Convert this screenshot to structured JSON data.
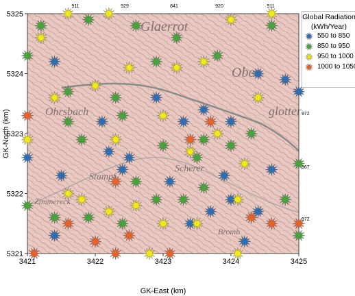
{
  "chart_data": {
    "type": "scatter",
    "title": "",
    "xlabel": "GK-East (km)",
    "ylabel": "GK-North (km)",
    "xlim": [
      3421,
      3425
    ],
    "ylim": [
      5321,
      5325
    ],
    "x_ticks": [
      "3421",
      "3422",
      "3423",
      "3424",
      "3425"
    ],
    "y_ticks": [
      "5321",
      "5322",
      "5323",
      "5324",
      "5325"
    ],
    "basemap": "topographic map",
    "basemap_labels": [
      "Glaerrot",
      "Ober",
      "Ohrsbach",
      "glotter",
      "Stampf",
      "Scherer",
      "Zimmereck",
      "Bromb"
    ],
    "top_labels": [
      "911",
      "929",
      "841",
      "920",
      "911"
    ],
    "right_labels": [
      "984",
      "972",
      "967",
      "972"
    ],
    "legend": {
      "title_line1": "Global Radiation",
      "title_line2": "(kWh/Year)",
      "position": "top-right",
      "entries": [
        {
          "label": "550  to  850",
          "color": "#2f6db0"
        },
        {
          "label": "850  to  950",
          "color": "#4aa23a"
        },
        {
          "label": "950  to  1000",
          "color": "#f2e81e"
        },
        {
          "label": "1000  to  1050",
          "color": "#e8622c"
        }
      ]
    },
    "series": [
      {
        "name": "550  to  850",
        "color": "#2f6db0",
        "points": [
          [
            3421.4,
            5324.2
          ],
          [
            3422.9,
            5323.6
          ],
          [
            3424.4,
            5324.0
          ],
          [
            3424.8,
            5323.9
          ],
          [
            3425.0,
            5323.7
          ],
          [
            3421.0,
            5322.6
          ],
          [
            3422.1,
            5323.2
          ],
          [
            3422.2,
            5322.7
          ],
          [
            3423.3,
            5323.2
          ],
          [
            3424.6,
            5322.4
          ],
          [
            3423.6,
            5323.4
          ],
          [
            3424.0,
            5323.2
          ],
          [
            3423.9,
            5322.3
          ],
          [
            3421.5,
            5322.3
          ],
          [
            3422.4,
            5322.4
          ],
          [
            3422.5,
            5322.6
          ],
          [
            3423.1,
            5322.2
          ],
          [
            3424.0,
            5321.9
          ],
          [
            3423.4,
            5321.5
          ],
          [
            3421.4,
            5321.3
          ],
          [
            3423.7,
            5321.7
          ],
          [
            3424.4,
            5321.7
          ],
          [
            3424.2,
            5321.2
          ]
        ]
      },
      {
        "name": "850  to  950",
        "color": "#4aa23a",
        "points": [
          [
            3421.0,
            5324.3
          ],
          [
            3421.2,
            5324.8
          ],
          [
            3421.9,
            5324.9
          ],
          [
            3422.6,
            5324.8
          ],
          [
            3423.2,
            5324.6
          ],
          [
            3421.6,
            5323.7
          ],
          [
            3422.3,
            5323.6
          ],
          [
            3421.6,
            5323.2
          ],
          [
            3421.8,
            5322.9
          ],
          [
            3422.4,
            5323.3
          ],
          [
            3423.0,
            5322.8
          ],
          [
            3423.5,
            5322.6
          ],
          [
            3424.0,
            5322.8
          ],
          [
            3424.3,
            5323.0
          ],
          [
            3425.0,
            5322.5
          ],
          [
            3421.0,
            5321.8
          ],
          [
            3421.9,
            5321.6
          ],
          [
            3422.4,
            5321.5
          ],
          [
            3422.9,
            5321.9
          ],
          [
            3423.3,
            5321.9
          ],
          [
            3423.6,
            5322.1
          ],
          [
            3424.8,
            5321.9
          ],
          [
            3425.0,
            5321.3
          ],
          [
            3421.4,
            5321.6
          ],
          [
            3422.9,
            5324.2
          ],
          [
            3423.8,
            5324.3
          ],
          [
            3424.6,
            5324.8
          ],
          [
            3423.6,
            5322.9
          ],
          [
            3422.6,
            5322.2
          ]
        ]
      },
      {
        "name": "950  to  1000",
        "color": "#f2e81e",
        "points": [
          [
            3421.6,
            5325.0
          ],
          [
            3422.2,
            5325.0
          ],
          [
            3424.0,
            5324.9
          ],
          [
            3424.6,
            5325.0
          ],
          [
            3421.2,
            5324.6
          ],
          [
            3421.4,
            5323.6
          ],
          [
            3422.5,
            5324.1
          ],
          [
            3423.2,
            5324.1
          ],
          [
            3423.6,
            5324.2
          ],
          [
            3422.0,
            5323.8
          ],
          [
            3421.0,
            5322.9
          ],
          [
            3422.3,
            5322.9
          ],
          [
            3423.0,
            5323.3
          ],
          [
            3423.8,
            5323.0
          ],
          [
            3424.2,
            5322.5
          ],
          [
            3421.6,
            5322.0
          ],
          [
            3421.8,
            5321.9
          ],
          [
            3422.6,
            5321.8
          ],
          [
            3423.0,
            5321.5
          ],
          [
            3423.5,
            5321.5
          ],
          [
            3424.1,
            5321.9
          ],
          [
            3422.2,
            5321.7
          ],
          [
            3423.4,
            5322.7
          ],
          [
            3424.4,
            5323.6
          ],
          [
            3422.8,
            5321.0
          ],
          [
            3424.1,
            5321.0
          ]
        ]
      },
      {
        "name": "1000  to  1050",
        "color": "#e8622c",
        "points": [
          [
            3421.0,
            5323.3
          ],
          [
            3422.3,
            5322.2
          ],
          [
            3423.4,
            5322.9
          ],
          [
            3423.7,
            5323.2
          ],
          [
            3424.3,
            5321.6
          ],
          [
            3424.6,
            5321.5
          ],
          [
            3425.0,
            5321.5
          ],
          [
            3421.6,
            5321.5
          ],
          [
            3422.0,
            5321.2
          ],
          [
            3422.5,
            5321.3
          ],
          [
            3423.1,
            5321.0
          ],
          [
            3422.3,
            5321.0
          ],
          [
            3421.1,
            5321.0
          ]
        ]
      }
    ]
  }
}
